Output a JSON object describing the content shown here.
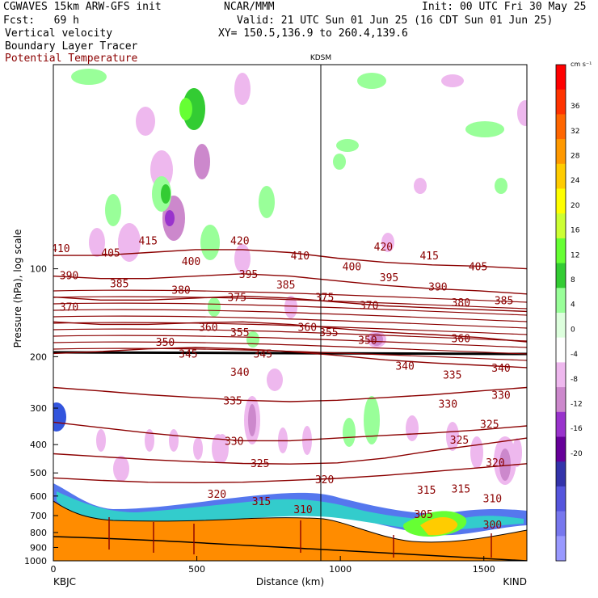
{
  "header": {
    "model": "CGWAVES 15km ARW-GFS init",
    "fcst": "Fcst:   69 h",
    "org": "NCAR/MMM",
    "init": "Init: 00 UTC Fri 30 May 25",
    "valid": "Valid: 21 UTC Sun 01 Jun 25 (16 CDT Sun 01 Jun 25)",
    "xy": "XY= 150.5,136.9 to 260.4,139.6",
    "field1": "Vertical velocity",
    "field2": "Boundary Layer Tracer",
    "field3": "Potential Temperature"
  },
  "chart_data": {
    "type": "heatmap",
    "title": "",
    "xlabel": "Distance (km)",
    "ylabel": "Pressure (hPa), log scale",
    "xlim": [
      0,
      1650
    ],
    "ylim": [
      1000,
      20
    ],
    "x_ticks": [
      0,
      500,
      1000,
      1500
    ],
    "y_ticks": [
      100,
      200,
      300,
      400,
      500,
      600,
      700,
      800,
      900,
      1000
    ],
    "y_scale": "log",
    "x_end_labels": {
      "left": "KBJC",
      "right": "KIND"
    },
    "station_marker": {
      "label": "KDSM",
      "x": 930
    },
    "colorbar": {
      "unit": "cm s⁻¹",
      "levels": [
        36,
        32,
        28,
        24,
        20,
        16,
        12,
        8,
        4,
        0,
        -4,
        -8,
        -12,
        -16,
        -20
      ],
      "colors": [
        "#ff0000",
        "#ff3300",
        "#ff6600",
        "#ff9900",
        "#ffcc00",
        "#ffff00",
        "#ccff33",
        "#66ff33",
        "#33cc33",
        "#99ff99",
        "#ddffdd",
        "#ffffff",
        "#eeb8ee",
        "#cc88cc",
        "#9933cc",
        "#660099",
        "#3333aa",
        "#5555dd",
        "#7777ee",
        "#9999ff"
      ]
    },
    "theta_contours": {
      "color": "#8b0000",
      "labels": [
        {
          "v": "410",
          "x": 25,
          "p": 85
        },
        {
          "v": "405",
          "x": 200,
          "p": 88
        },
        {
          "v": "415",
          "x": 330,
          "p": 80
        },
        {
          "v": "420",
          "x": 650,
          "p": 80
        },
        {
          "v": "410",
          "x": 860,
          "p": 90
        },
        {
          "v": "420",
          "x": 1150,
          "p": 84
        },
        {
          "v": "415",
          "x": 1310,
          "p": 90
        },
        {
          "v": "405",
          "x": 1480,
          "p": 98
        },
        {
          "v": "390",
          "x": 55,
          "p": 105
        },
        {
          "v": "385",
          "x": 230,
          "p": 112
        },
        {
          "v": "400",
          "x": 480,
          "p": 94
        },
        {
          "v": "395",
          "x": 680,
          "p": 104
        },
        {
          "v": "385",
          "x": 810,
          "p": 113
        },
        {
          "v": "400",
          "x": 1040,
          "p": 98
        },
        {
          "v": "395",
          "x": 1170,
          "p": 107
        },
        {
          "v": "390",
          "x": 1340,
          "p": 115
        },
        {
          "v": "385",
          "x": 1570,
          "p": 128
        },
        {
          "v": "370",
          "x": 55,
          "p": 135
        },
        {
          "v": "380",
          "x": 445,
          "p": 118
        },
        {
          "v": "375",
          "x": 640,
          "p": 125
        },
        {
          "v": "375",
          "x": 945,
          "p": 125
        },
        {
          "v": "370",
          "x": 1100,
          "p": 133
        },
        {
          "v": "380",
          "x": 1420,
          "p": 130
        },
        {
          "v": "360",
          "x": 540,
          "p": 158
        },
        {
          "v": "355",
          "x": 650,
          "p": 165
        },
        {
          "v": "360",
          "x": 885,
          "p": 158
        },
        {
          "v": "355",
          "x": 960,
          "p": 165
        },
        {
          "v": "350",
          "x": 1095,
          "p": 175
        },
        {
          "v": "360",
          "x": 1420,
          "p": 173
        },
        {
          "v": "350",
          "x": 390,
          "p": 178
        },
        {
          "v": "345",
          "x": 470,
          "p": 195
        },
        {
          "v": "345",
          "x": 730,
          "p": 195
        },
        {
          "v": "340",
          "x": 650,
          "p": 225
        },
        {
          "v": "340",
          "x": 1225,
          "p": 215
        },
        {
          "v": "335",
          "x": 1390,
          "p": 230
        },
        {
          "v": "340",
          "x": 1560,
          "p": 218
        },
        {
          "v": "335",
          "x": 625,
          "p": 282
        },
        {
          "v": "330",
          "x": 1375,
          "p": 290
        },
        {
          "v": "330",
          "x": 1560,
          "p": 270
        },
        {
          "v": "325",
          "x": 1520,
          "p": 340
        },
        {
          "v": "330",
          "x": 630,
          "p": 388
        },
        {
          "v": "325",
          "x": 1415,
          "p": 385
        },
        {
          "v": "325",
          "x": 720,
          "p": 462
        },
        {
          "v": "320",
          "x": 945,
          "p": 525
        },
        {
          "v": "320",
          "x": 1540,
          "p": 460
        },
        {
          "v": "320",
          "x": 570,
          "p": 590
        },
        {
          "v": "315",
          "x": 725,
          "p": 625
        },
        {
          "v": "315",
          "x": 1300,
          "p": 570
        },
        {
          "v": "315",
          "x": 1420,
          "p": 565
        },
        {
          "v": "310",
          "x": 870,
          "p": 665
        },
        {
          "v": "310",
          "x": 1530,
          "p": 610
        },
        {
          "v": "305",
          "x": 1290,
          "p": 690
        },
        {
          "v": "300",
          "x": 1530,
          "p": 750
        }
      ]
    },
    "series": [
      {
        "p": [
          90,
          90,
          88,
          86,
          86,
          88,
          92,
          95,
          97,
          98,
          100
        ],
        "x": [
          0,
          165,
          330,
          495,
          660,
          825,
          990,
          1155,
          1320,
          1485,
          1650
        ]
      },
      {
        "p": [
          106,
          108,
          108,
          106,
          104,
          106,
          110,
          114,
          117,
          119,
          122
        ],
        "x": [
          0,
          165,
          330,
          495,
          660,
          825,
          990,
          1155,
          1320,
          1485,
          1650
        ]
      },
      {
        "p": [
          125,
          128,
          128,
          126,
          124,
          126,
          130,
          134,
          136,
          138,
          140
        ],
        "x": [
          0,
          165,
          330,
          495,
          660,
          825,
          990,
          1155,
          1320,
          1485,
          1650
        ]
      },
      {
        "p": [
          152,
          155,
          155,
          153,
          152,
          155,
          160,
          165,
          168,
          172,
          178
        ],
        "x": [
          0,
          165,
          330,
          495,
          660,
          825,
          990,
          1155,
          1320,
          1485,
          1650
        ]
      },
      {
        "p": [
          195,
          192,
          188,
          186,
          188,
          192,
          198,
          205,
          210,
          214,
          218
        ],
        "x": [
          0,
          165,
          330,
          495,
          660,
          825,
          990,
          1155,
          1320,
          1485,
          1650
        ]
      },
      {
        "p": [
          255,
          262,
          270,
          276,
          282,
          285,
          282,
          276,
          270,
          262,
          255
        ],
        "x": [
          0,
          165,
          330,
          495,
          660,
          825,
          990,
          1155,
          1320,
          1485,
          1650
        ]
      },
      {
        "p": [
          335,
          350,
          365,
          378,
          388,
          388,
          380,
          372,
          365,
          356,
          345
        ],
        "x": [
          0,
          165,
          330,
          495,
          660,
          825,
          990,
          1155,
          1320,
          1485,
          1650
        ]
      },
      {
        "p": [
          430,
          440,
          450,
          458,
          464,
          466,
          462,
          445,
          420,
          400,
          380
        ],
        "x": [
          0,
          165,
          330,
          495,
          660,
          825,
          990,
          1155,
          1320,
          1485,
          1650
        ]
      },
      {
        "p": [
          520,
          530,
          538,
          540,
          538,
          530,
          522,
          510,
          495,
          480,
          465
        ],
        "x": [
          0,
          165,
          330,
          495,
          660,
          825,
          990,
          1155,
          1320,
          1485,
          1650
        ]
      }
    ]
  }
}
